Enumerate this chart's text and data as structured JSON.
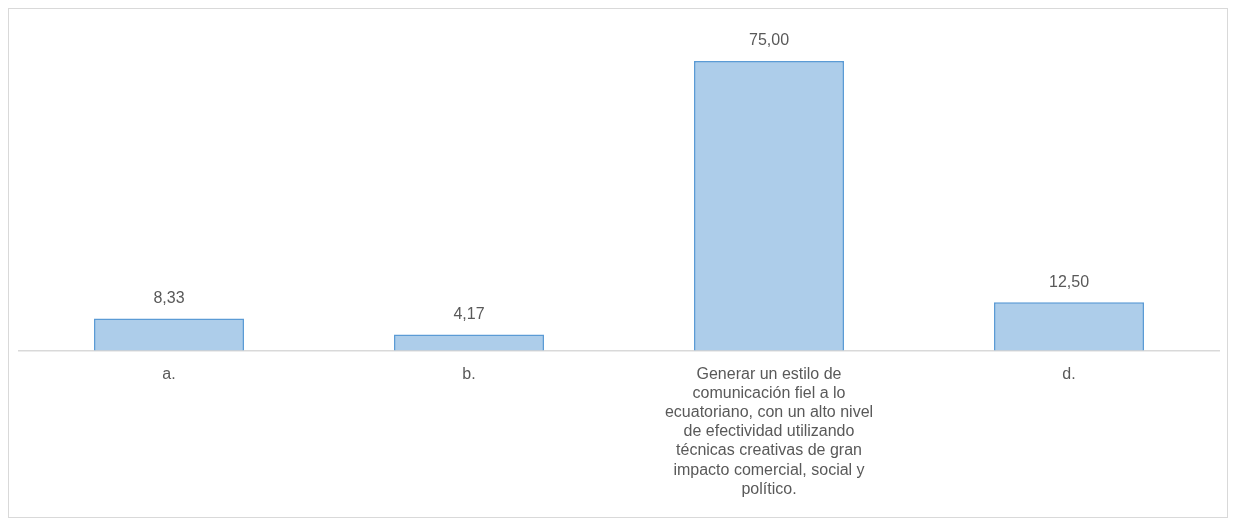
{
  "chart_data": {
    "type": "bar",
    "categories": [
      "a.",
      "b.",
      "Generar un estilo de comunicación fiel a lo ecuatoriano, con un alto nivel de efectividad utilizando técnicas creativas de gran impacto comercial, social y político.",
      "d."
    ],
    "values": [
      8.33,
      4.17,
      75,
      12.5
    ],
    "color": "#5b9bd5",
    "value_labels": [
      "8,33",
      "4,17",
      "75,00",
      "12,50"
    ],
    "legend": false,
    "grid": false
  }
}
